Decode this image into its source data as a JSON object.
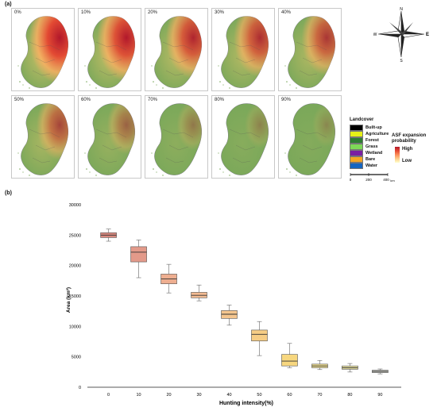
{
  "panel_a_label": "(a)",
  "panel_b_label": "(b)",
  "maps": [
    {
      "label": "0%",
      "risk": 1.0
    },
    {
      "label": "10%",
      "risk": 0.92
    },
    {
      "label": "20%",
      "risk": 0.82
    },
    {
      "label": "30%",
      "risk": 0.76
    },
    {
      "label": "40%",
      "risk": 0.7
    },
    {
      "label": "50%",
      "risk": 0.6
    },
    {
      "label": "60%",
      "risk": 0.4
    },
    {
      "label": "70%",
      "risk": 0.25
    },
    {
      "label": "80%",
      "risk": 0.18
    },
    {
      "label": "90%",
      "risk": 0.14
    }
  ],
  "compass": {
    "n": "N",
    "s": "S",
    "e": "E",
    "w": "W"
  },
  "legend": {
    "landcover_title": "Landcover",
    "landcover": [
      {
        "label": "Built-up",
        "color": "#000000"
      },
      {
        "label": "Agriculture",
        "color": "#e6f018"
      },
      {
        "label": "Forest",
        "color": "#2e7d32"
      },
      {
        "label": "Grass",
        "color": "#7ed957"
      },
      {
        "label": "Wetland",
        "color": "#7b1fa2"
      },
      {
        "label": "Bare",
        "color": "#f5a623"
      },
      {
        "label": "Water",
        "color": "#1565c0"
      }
    ],
    "asf_title": "ASF expansion probability",
    "high": "High",
    "low": "Low",
    "scale_ticks": [
      "0",
      "200",
      "400"
    ],
    "scale_unit": "km"
  },
  "chart_data": {
    "type": "box",
    "xlabel": "Hunting intensity(%)",
    "ylabel": "Area (km²)",
    "ylim": [
      0,
      30000
    ],
    "yticks": [
      0,
      5000,
      10000,
      15000,
      20000,
      25000,
      30000
    ],
    "categories": [
      "0",
      "10",
      "20",
      "30",
      "40",
      "50",
      "60",
      "70",
      "80",
      "90"
    ],
    "boxes": [
      {
        "min": 24000,
        "q1": 24600,
        "median": 25000,
        "q3": 25400,
        "max": 26000,
        "color": "#d9897f"
      },
      {
        "min": 18000,
        "q1": 20600,
        "median": 22200,
        "q3": 23100,
        "max": 24200,
        "color": "#e39a8a"
      },
      {
        "min": 15500,
        "q1": 17000,
        "median": 17800,
        "q3": 18600,
        "max": 20200,
        "color": "#eeae90"
      },
      {
        "min": 14200,
        "q1": 14700,
        "median": 15100,
        "q3": 15600,
        "max": 16800,
        "color": "#f2bb92"
      },
      {
        "min": 10200,
        "q1": 11300,
        "median": 12000,
        "q3": 12600,
        "max": 13500,
        "color": "#f4c58e"
      },
      {
        "min": 5200,
        "q1": 7600,
        "median": 8700,
        "q3": 9400,
        "max": 10800,
        "color": "#f6cd85"
      },
      {
        "min": 3200,
        "q1": 3500,
        "median": 4300,
        "q3": 5400,
        "max": 7200,
        "color": "#f7d77f"
      },
      {
        "min": 2900,
        "q1": 3200,
        "median": 3500,
        "q3": 3800,
        "max": 4400,
        "color": "#eddc8f"
      },
      {
        "min": 2500,
        "q1": 2950,
        "median": 3200,
        "q3": 3500,
        "max": 3900,
        "color": "#e3dc9e"
      },
      {
        "min": 2200,
        "q1": 2400,
        "median": 2600,
        "q3": 2800,
        "max": 3000,
        "color": "#c8c8c0"
      }
    ]
  }
}
